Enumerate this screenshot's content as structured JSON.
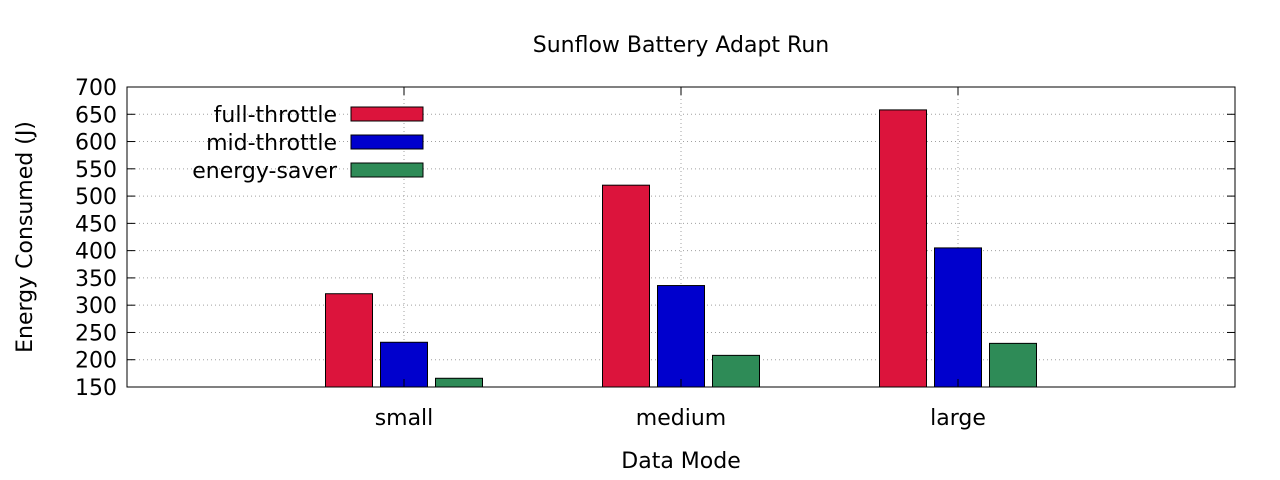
{
  "chart_data": {
    "type": "bar",
    "title": "Sunflow Battery Adapt Run",
    "xlabel": "Data Mode",
    "ylabel": "Energy Consumed (J)",
    "ylim": [
      150,
      700
    ],
    "yticks": [
      150,
      200,
      250,
      300,
      350,
      400,
      450,
      500,
      550,
      600,
      650,
      700
    ],
    "grid": true,
    "legend_position": "top-left",
    "categories": [
      "small",
      "medium",
      "large"
    ],
    "series": [
      {
        "name": "full-throttle",
        "color": "#dc143c",
        "values": [
          321,
          520,
          658
        ]
      },
      {
        "name": "mid-throttle",
        "color": "#0000cd",
        "values": [
          232,
          336,
          405
        ]
      },
      {
        "name": "energy-saver",
        "color": "#2e8b57",
        "values": [
          166,
          208,
          230
        ]
      }
    ]
  }
}
